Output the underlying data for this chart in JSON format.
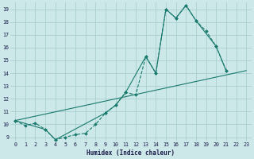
{
  "xlabel": "Humidex (Indice chaleur)",
  "bg_color": "#cce8e8",
  "grid_color": "#aacfcf",
  "line_color": "#1a7a6e",
  "xlim": [
    -0.5,
    23.5
  ],
  "ylim": [
    8.7,
    19.5
  ],
  "xticks": [
    0,
    1,
    2,
    3,
    4,
    5,
    6,
    7,
    8,
    9,
    10,
    11,
    12,
    13,
    14,
    15,
    16,
    17,
    18,
    19,
    20,
    21,
    22,
    23
  ],
  "yticks": [
    9,
    10,
    11,
    12,
    13,
    14,
    15,
    16,
    17,
    18,
    19
  ],
  "series1": {
    "x": [
      0,
      1,
      2,
      3,
      4,
      5,
      6,
      7,
      8,
      9,
      10,
      11,
      12,
      13,
      14,
      15,
      16,
      17,
      18,
      19,
      20,
      21
    ],
    "y": [
      10.3,
      9.9,
      10.1,
      9.6,
      8.8,
      9.0,
      9.2,
      9.3,
      10.0,
      10.9,
      11.5,
      12.5,
      12.3,
      15.3,
      14.0,
      19.0,
      18.3,
      19.3,
      18.1,
      17.3,
      16.1,
      14.2
    ],
    "style": "dashed",
    "marker": true
  },
  "series2": {
    "x": [
      0,
      3,
      4,
      9,
      10,
      11,
      13,
      14,
      15,
      16,
      17,
      18,
      20,
      21
    ],
    "y": [
      10.3,
      9.6,
      8.8,
      10.9,
      11.5,
      12.5,
      15.3,
      14.0,
      19.0,
      18.3,
      19.3,
      18.1,
      16.1,
      14.2
    ],
    "style": "solid",
    "marker": true
  },
  "series3": {
    "x": [
      0,
      23
    ],
    "y": [
      10.3,
      14.2
    ],
    "style": "solid",
    "marker": false
  }
}
